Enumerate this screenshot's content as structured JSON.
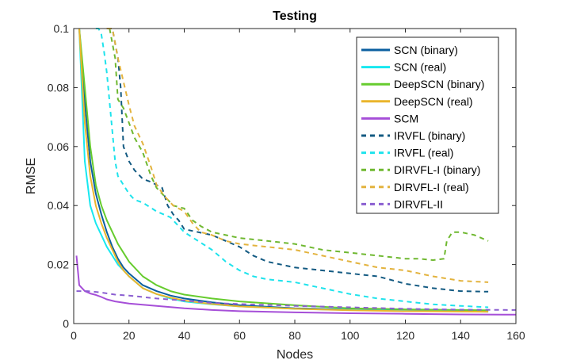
{
  "chart_data": {
    "type": "line",
    "title": "Testing",
    "xlabel": "Nodes",
    "ylabel": "RMSE",
    "xlim": [
      0,
      160
    ],
    "ylim": [
      0,
      0.1
    ],
    "xticks": [
      0,
      20,
      40,
      60,
      80,
      100,
      120,
      140,
      160
    ],
    "xtick_labels": [
      "0",
      "20",
      "40",
      "60",
      "80",
      "100",
      "120",
      "140",
      "160"
    ],
    "yticks": [
      0,
      0.02,
      0.04,
      0.06,
      0.08,
      0.1
    ],
    "ytick_labels": [
      "0",
      "0.02",
      "0.04",
      "0.06",
      "0.08",
      "0.1"
    ],
    "grid": false,
    "legend_position": "top-right",
    "series": [
      {
        "name": "SCN (binary)",
        "color": "#0b5fa0",
        "dash": "solid",
        "x": [
          2,
          4,
          6,
          8,
          10,
          12,
          14,
          16,
          18,
          20,
          25,
          30,
          35,
          40,
          50,
          60,
          80,
          100,
          120,
          150
        ],
        "y": [
          0.1,
          0.075,
          0.055,
          0.044,
          0.037,
          0.031,
          0.026,
          0.022,
          0.019,
          0.017,
          0.013,
          0.011,
          0.0095,
          0.0085,
          0.0072,
          0.0062,
          0.0052,
          0.0047,
          0.0044,
          0.0042
        ]
      },
      {
        "name": "SCN (real)",
        "color": "#17e8f0",
        "dash": "solid",
        "x": [
          2,
          4,
          6,
          8,
          10,
          12,
          14,
          16,
          18,
          20,
          25,
          30,
          35,
          40,
          50,
          60,
          80,
          100,
          120,
          150
        ],
        "y": [
          0.1,
          0.055,
          0.04,
          0.034,
          0.03,
          0.026,
          0.023,
          0.02,
          0.018,
          0.016,
          0.012,
          0.01,
          0.0085,
          0.0075,
          0.0065,
          0.0058,
          0.005,
          0.0046,
          0.0043,
          0.004
        ]
      },
      {
        "name": "DeepSCN (binary)",
        "color": "#66cc2e",
        "dash": "solid",
        "x": [
          2,
          4,
          6,
          8,
          10,
          12,
          14,
          16,
          18,
          20,
          25,
          30,
          35,
          40,
          50,
          60,
          80,
          100,
          120,
          150
        ],
        "y": [
          0.1,
          0.08,
          0.06,
          0.047,
          0.04,
          0.035,
          0.031,
          0.027,
          0.024,
          0.021,
          0.016,
          0.013,
          0.011,
          0.0098,
          0.0085,
          0.0075,
          0.0062,
          0.0052,
          0.0048,
          0.0045
        ]
      },
      {
        "name": "DeepSCN (real)",
        "color": "#eab52c",
        "dash": "solid",
        "x": [
          2,
          4,
          6,
          8,
          10,
          12,
          14,
          16,
          18,
          20,
          25,
          30,
          35,
          40,
          50,
          60,
          80,
          100,
          120,
          150
        ],
        "y": [
          0.1,
          0.068,
          0.05,
          0.04,
          0.034,
          0.029,
          0.025,
          0.021,
          0.018,
          0.016,
          0.012,
          0.01,
          0.0088,
          0.0078,
          0.0066,
          0.0058,
          0.005,
          0.0045,
          0.0042,
          0.004
        ]
      },
      {
        "name": "SCM",
        "color": "#a64fd8",
        "dash": "solid",
        "x": [
          1,
          2,
          4,
          6,
          8,
          10,
          12,
          15,
          20,
          25,
          30,
          35,
          40,
          50,
          60,
          80,
          100,
          120,
          140,
          160
        ],
        "y": [
          0.023,
          0.013,
          0.011,
          0.0102,
          0.0097,
          0.009,
          0.0082,
          0.0075,
          0.0068,
          0.0064,
          0.006,
          0.0056,
          0.0052,
          0.0046,
          0.0042,
          0.0038,
          0.0035,
          0.0033,
          0.0031,
          0.003
        ]
      },
      {
        "name": "IRVFL (binary)",
        "color": "#135a82",
        "dash": "6,5",
        "x": [
          12,
          13,
          14,
          15,
          16,
          17,
          18,
          20,
          22,
          25,
          28,
          30,
          32,
          34,
          36,
          38,
          40,
          45,
          50,
          55,
          60,
          65,
          70,
          80,
          90,
          100,
          110,
          120,
          130,
          140,
          150
        ],
        "y": [
          0.1,
          0.1,
          0.1,
          0.095,
          0.09,
          0.08,
          0.06,
          0.055,
          0.052,
          0.049,
          0.048,
          0.047,
          0.046,
          0.04,
          0.037,
          0.035,
          0.032,
          0.031,
          0.03,
          0.028,
          0.026,
          0.023,
          0.021,
          0.019,
          0.018,
          0.017,
          0.016,
          0.0135,
          0.012,
          0.011,
          0.0108
        ]
      },
      {
        "name": "IRVFL (real)",
        "color": "#1ee3ec",
        "dash": "6,5",
        "x": [
          8,
          9,
          10,
          11,
          12,
          13,
          14,
          15,
          16,
          18,
          20,
          22,
          25,
          30,
          35,
          40,
          45,
          50,
          55,
          60,
          65,
          70,
          80,
          90,
          100,
          110,
          120,
          130,
          140,
          150
        ],
        "y": [
          0.1,
          0.1,
          0.098,
          0.092,
          0.085,
          0.075,
          0.065,
          0.055,
          0.05,
          0.047,
          0.044,
          0.042,
          0.041,
          0.038,
          0.036,
          0.031,
          0.028,
          0.025,
          0.021,
          0.018,
          0.016,
          0.015,
          0.014,
          0.012,
          0.01,
          0.0085,
          0.0075,
          0.0065,
          0.006,
          0.0055
        ]
      },
      {
        "name": "DIRVFL-I (binary)",
        "color": "#6fb830",
        "dash": "6,5",
        "x": [
          13,
          14,
          15,
          16,
          18,
          20,
          22,
          25,
          28,
          30,
          33,
          36,
          40,
          43,
          46,
          50,
          55,
          60,
          70,
          80,
          90,
          100,
          110,
          120,
          125,
          130,
          134,
          135,
          137,
          140,
          145,
          150
        ],
        "y": [
          0.1,
          0.095,
          0.09,
          0.076,
          0.073,
          0.068,
          0.063,
          0.058,
          0.05,
          0.046,
          0.043,
          0.04,
          0.039,
          0.035,
          0.033,
          0.031,
          0.03,
          0.029,
          0.028,
          0.027,
          0.025,
          0.024,
          0.023,
          0.022,
          0.022,
          0.0215,
          0.022,
          0.028,
          0.031,
          0.031,
          0.03,
          0.028
        ]
      },
      {
        "name": "DIRVFL-I (real)",
        "color": "#e3b33e",
        "dash": "6,5",
        "x": [
          12,
          13,
          14,
          15,
          16,
          18,
          20,
          22,
          25,
          28,
          30,
          33,
          36,
          40,
          43,
          46,
          50,
          55,
          60,
          70,
          80,
          90,
          100,
          110,
          120,
          130,
          140,
          150
        ],
        "y": [
          0.1,
          0.1,
          0.1,
          0.095,
          0.09,
          0.082,
          0.074,
          0.067,
          0.061,
          0.053,
          0.047,
          0.043,
          0.04,
          0.038,
          0.034,
          0.031,
          0.03,
          0.028,
          0.027,
          0.026,
          0.025,
          0.023,
          0.021,
          0.019,
          0.018,
          0.016,
          0.0145,
          0.014
        ]
      },
      {
        "name": "DIRVFL-II",
        "color": "#8b5fd1",
        "dash": "6,5",
        "x": [
          1,
          5,
          10,
          15,
          20,
          30,
          40,
          50,
          60,
          80,
          100,
          120,
          140,
          160
        ],
        "y": [
          0.011,
          0.011,
          0.0105,
          0.0098,
          0.0095,
          0.0085,
          0.0078,
          0.007,
          0.0066,
          0.006,
          0.0055,
          0.005,
          0.0047,
          0.0046
        ]
      }
    ]
  }
}
